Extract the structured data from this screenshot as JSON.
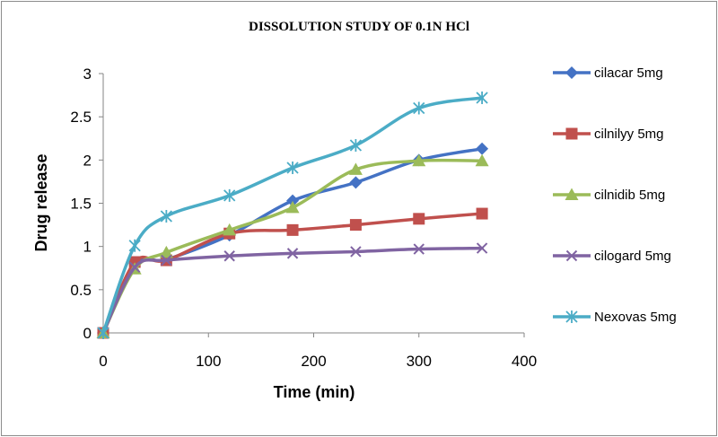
{
  "chart_data": {
    "type": "line",
    "title": "DISSOLUTION STUDY OF 0.1N HCl",
    "xlabel": "Time (min)",
    "ylabel": "Drug release",
    "xlim": [
      0,
      400
    ],
    "ylim": [
      0,
      3
    ],
    "xticks": [
      0,
      100,
      200,
      300,
      400
    ],
    "yticks": [
      0,
      0.5,
      1,
      1.5,
      2,
      2.5,
      3
    ],
    "x": [
      0,
      30,
      60,
      120,
      180,
      240,
      300,
      360
    ],
    "grid": false,
    "legend_position": "right",
    "series": [
      {
        "name": "cilacar 5mg",
        "color": "#4472C4",
        "marker": "diamond",
        "values": [
          0,
          0.8,
          0.85,
          1.13,
          1.53,
          1.74,
          2.0,
          2.13
        ]
      },
      {
        "name": "cilnilyy 5mg",
        "color": "#C0504D",
        "marker": "square",
        "values": [
          0,
          0.82,
          0.84,
          1.15,
          1.19,
          1.25,
          1.32,
          1.38
        ]
      },
      {
        "name": "cilnidib 5mg",
        "color": "#9BBB59",
        "marker": "triangle",
        "values": [
          0,
          0.74,
          0.93,
          1.19,
          1.45,
          1.89,
          1.99,
          1.99
        ]
      },
      {
        "name": "cilogard 5mg",
        "color": "#8064A2",
        "marker": "x",
        "values": [
          0,
          0.76,
          0.84,
          0.89,
          0.92,
          0.94,
          0.97,
          0.98
        ]
      },
      {
        "name": "Nexovas 5mg",
        "color": "#4BACC6",
        "marker": "star",
        "values": [
          0,
          1.01,
          1.35,
          1.59,
          1.91,
          2.17,
          2.6,
          2.72
        ]
      }
    ]
  }
}
